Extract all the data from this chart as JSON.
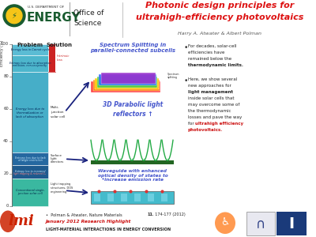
{
  "title_line1": "Photonic design principles for",
  "title_line2": "ultrahigh-efficiency photovoltaics",
  "title_color": "#dd1111",
  "authors": "Harry A. Atwater & Albert Polman",
  "authors_color": "#555555",
  "bg_color": "#ffffff",
  "header_bg": "#f8f8f8",
  "seg1_color": "#5bbcd4",
  "seg2_color": "#4fb2cc",
  "seg3_color": "#45aacc",
  "seg3b_color": "#42b0d0",
  "seg4_color": "#2a6fa0",
  "seg5_color": "#2a6fa0",
  "seg6_color": "#3ab8a0",
  "intrinsic_color": "#cc2222",
  "arrow_color": "#1a237e",
  "spectrum_text_color": "#4455cc",
  "parabolic_text_color": "#4455cc",
  "waveguide_text_color": "#4455cc",
  "bullet_text_color": "#222222",
  "bold_text_color": "#000000",
  "highlight_red": "#cc1111",
  "footer_bg": "#dddddd",
  "footer_text_color": "#222222",
  "footer_red": "#cc1111",
  "lmi_red": "#cc2200",
  "blue_logo": "#1a3a7a",
  "green_parabolic": "#22aa44",
  "teal_waveguide": "#44bbcc",
  "dark_green_base": "#226622"
}
